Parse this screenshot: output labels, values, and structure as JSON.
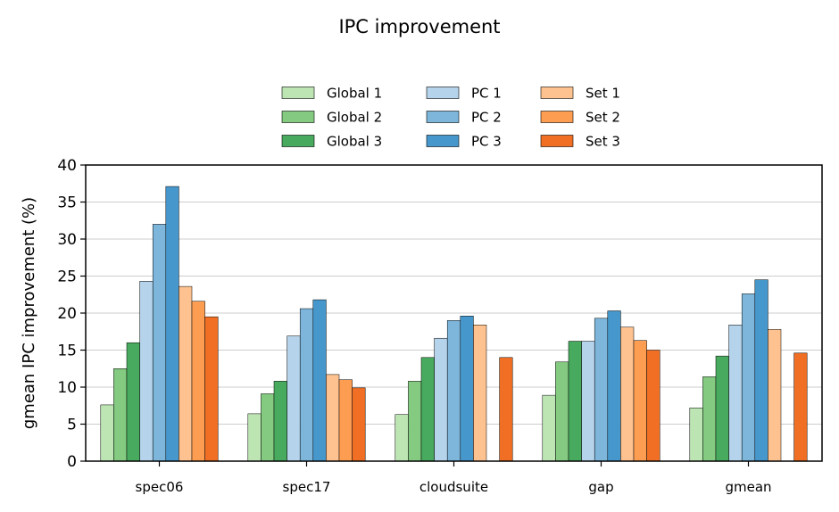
{
  "chart_data": {
    "type": "bar",
    "title": "IPC improvement",
    "xlabel": "",
    "ylabel": "gmean IPC improvement (%)",
    "ylim": [
      0,
      40
    ],
    "yticks": [
      0,
      5,
      10,
      15,
      20,
      25,
      30,
      35,
      40
    ],
    "grid": "horizontal",
    "legend_position": "top-center",
    "categories": [
      "spec06",
      "spec17",
      "cloudsuite",
      "gap",
      "gmean"
    ],
    "series": [
      {
        "name": "Global 1",
        "color": "#bde5b4",
        "values": [
          7.6,
          6.4,
          6.3,
          8.9,
          7.2
        ]
      },
      {
        "name": "Global 2",
        "color": "#84ca80",
        "values": [
          12.5,
          9.1,
          10.8,
          13.4,
          11.4
        ]
      },
      {
        "name": "Global 3",
        "color": "#48aa5e",
        "values": [
          16.0,
          10.8,
          14.0,
          16.2,
          14.2
        ]
      },
      {
        "name": "PC 1",
        "color": "#b5d3ea",
        "values": [
          24.3,
          16.9,
          16.6,
          16.2,
          18.4
        ]
      },
      {
        "name": "PC 2",
        "color": "#7db6da",
        "values": [
          32.0,
          20.6,
          19.0,
          19.3,
          22.6
        ]
      },
      {
        "name": "PC 3",
        "color": "#4697cb",
        "values": [
          37.1,
          21.8,
          19.6,
          20.3,
          24.5
        ]
      },
      {
        "name": "Set 1",
        "color": "#fdc28f",
        "values": [
          23.6,
          11.7,
          18.4,
          18.1,
          17.8
        ]
      },
      {
        "name": "Set 2",
        "color": "#fd9d52",
        "values": [
          21.6,
          11.0,
          null,
          16.3,
          null
        ]
      },
      {
        "name": "Set 3",
        "color": "#f16f24",
        "values": [
          19.5,
          9.9,
          14.0,
          15.0,
          14.6
        ]
      }
    ]
  }
}
